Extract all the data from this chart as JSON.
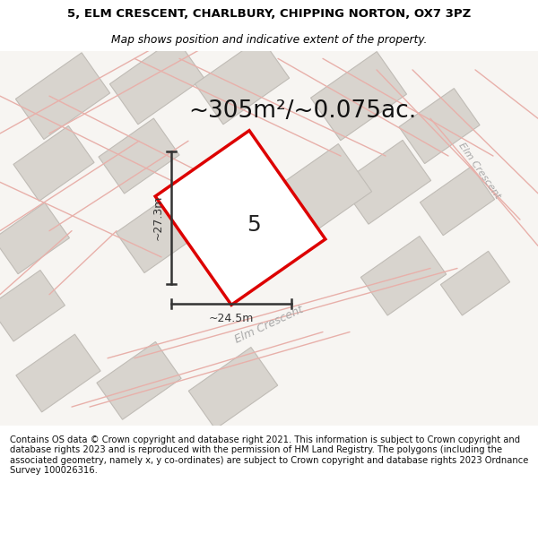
{
  "title_line1": "5, ELM CRESCENT, CHARLBURY, CHIPPING NORTON, OX7 3PZ",
  "title_line2": "Map shows position and indicative extent of the property.",
  "area_text": "~305m²/~0.075ac.",
  "property_number": "5",
  "dim_vertical": "~27.3m",
  "dim_horizontal": "~24.5m",
  "street_label_center": "Elm Crescent",
  "street_label_right": "Elm Crescent",
  "footer_text": "Contains OS data © Crown copyright and database right 2021. This information is subject to Crown copyright and database rights 2023 and is reproduced with the permission of HM Land Registry. The polygons (including the associated geometry, namely x, y co-ordinates) are subject to Crown copyright and database rights 2023 Ordnance Survey 100026316.",
  "map_bg": "#ede9e4",
  "road_fill": "#f7f5f2",
  "building_fill": "#d8d4ce",
  "building_edge": "#c0bcb6",
  "plot_outline_color": "#dd0000",
  "road_line_color": "#e8b0aa",
  "footer_fontsize": 7.2,
  "title_fontsize": 9.5,
  "subtitle_fontsize": 8.8,
  "area_fontsize": 19,
  "label_fontsize": 9,
  "street_label_color": "#aaaaaa",
  "dim_color": "#333333",
  "number_fontsize": 18
}
